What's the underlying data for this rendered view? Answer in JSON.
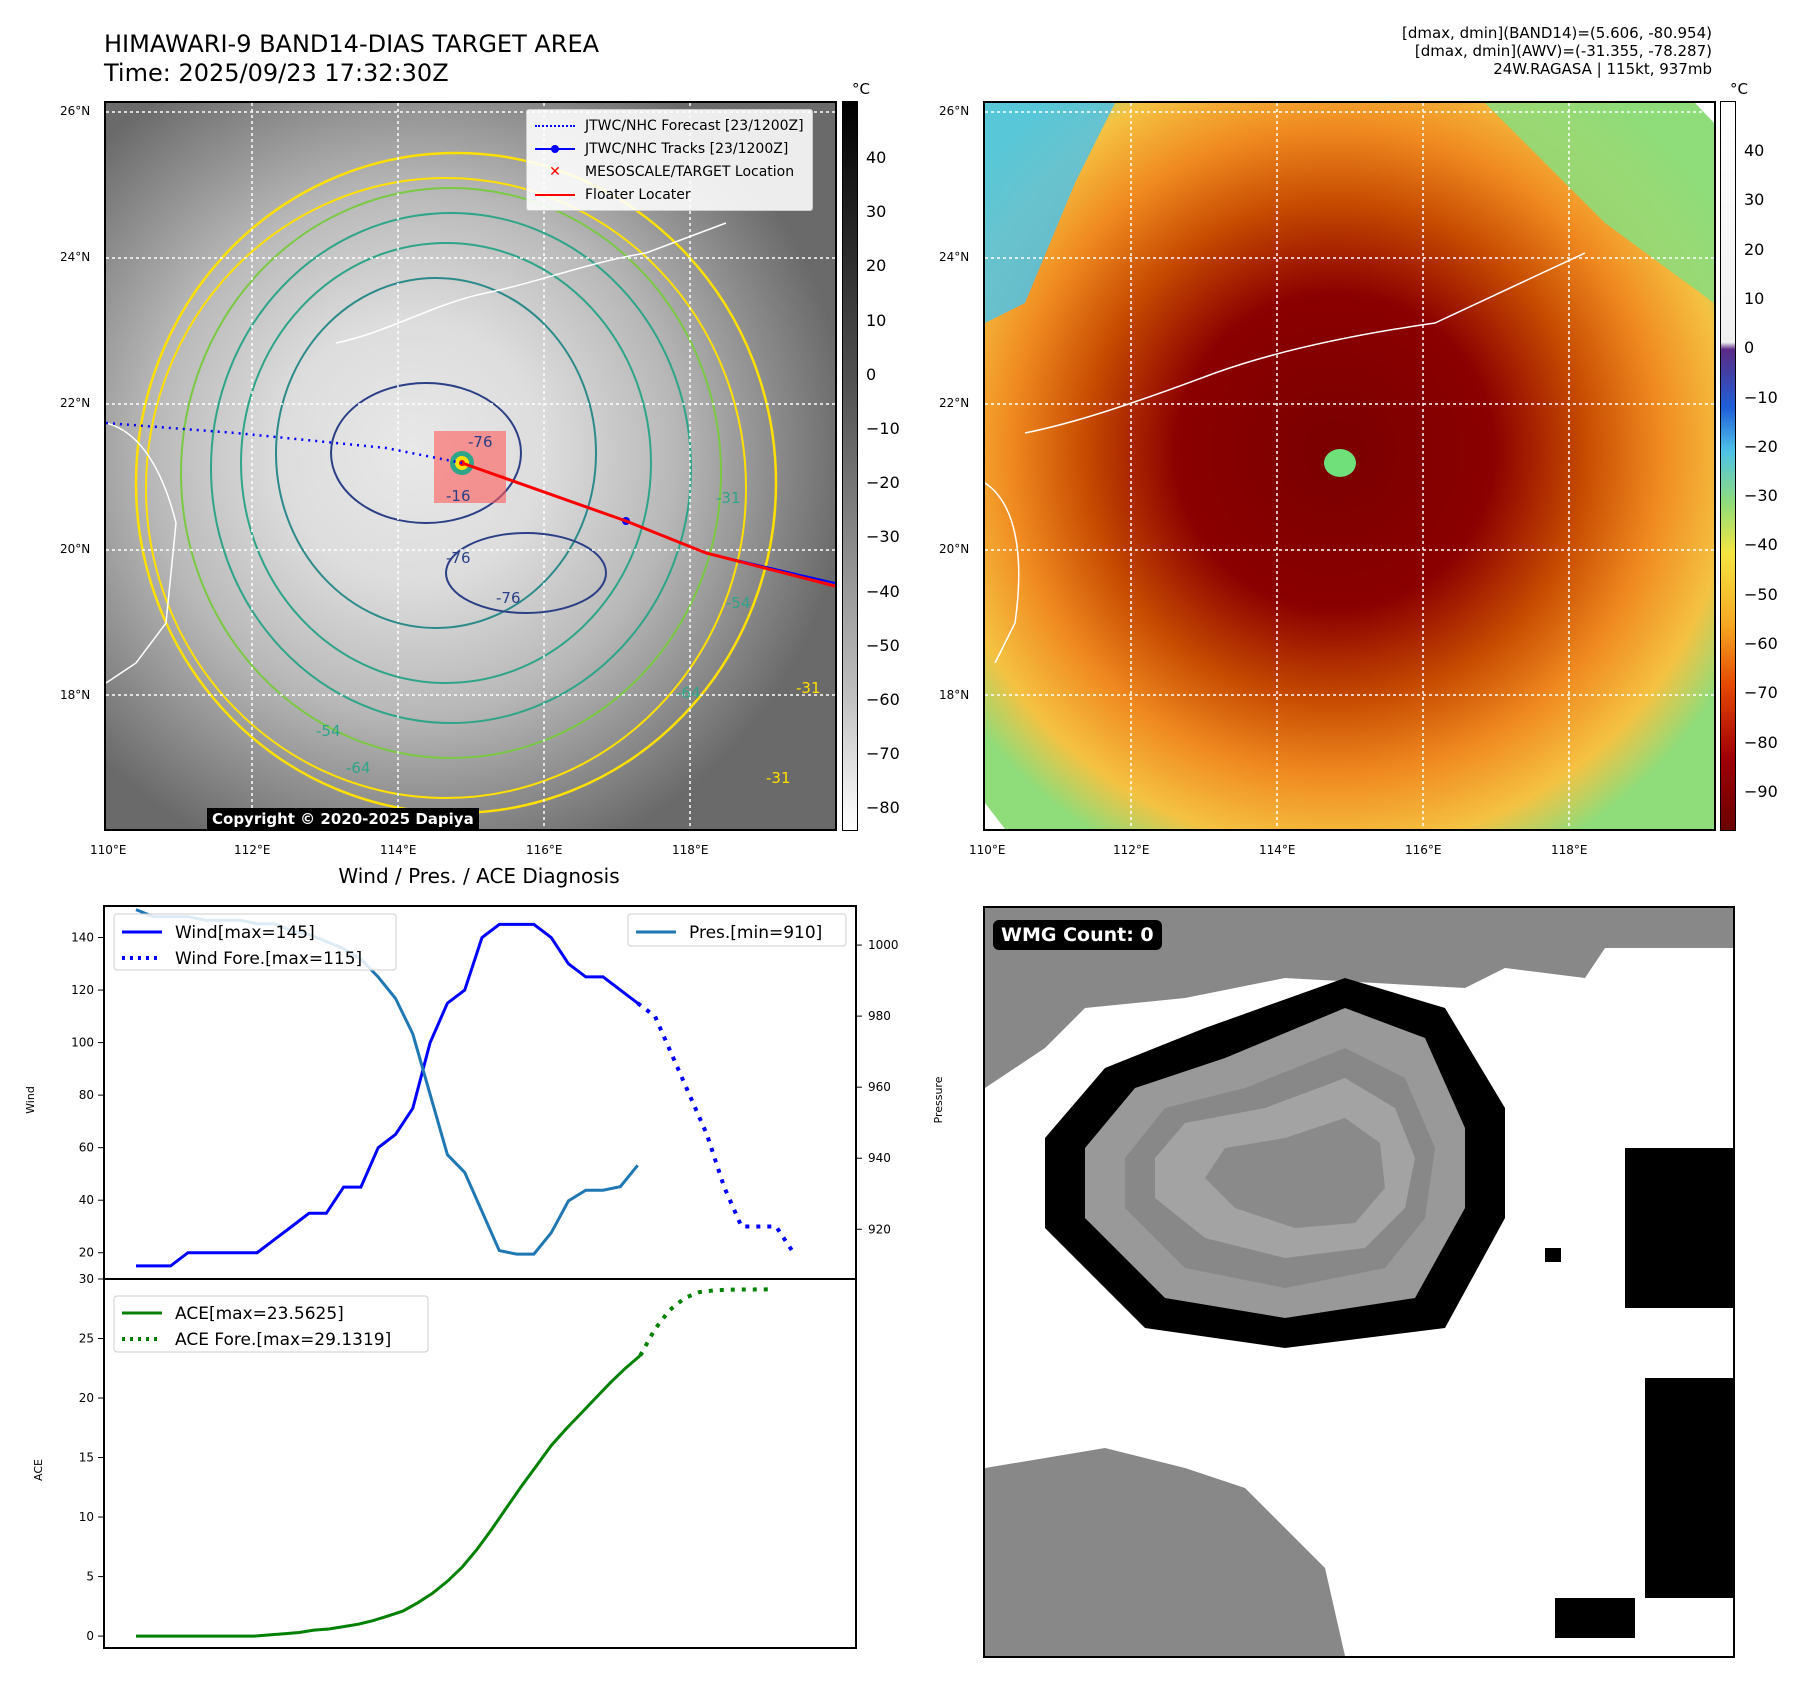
{
  "header": {
    "title_line1": "HIMAWARI-9 BAND14-DIAS TARGET AREA",
    "title_line2": "Time: 2025/09/23 17:32:30Z",
    "meta_line1": "[dmax, dmin](BAND14)=(5.606, -80.954)",
    "meta_line2": "[dmax, dmin](AWV)=(-31.355, -78.287)",
    "meta_line3": "24W.RAGASA | 115kt, 937mb"
  },
  "map": {
    "lat_labels": [
      "26°N",
      "24°N",
      "22°N",
      "20°N",
      "18°N"
    ],
    "lon_labels": [
      "110°E",
      "112°E",
      "114°E",
      "116°E",
      "118°E"
    ],
    "legend": [
      {
        "label": "JTWC/NHC Forecast [23/1200Z]",
        "color": "#0000ff",
        "style": "dotted"
      },
      {
        "label": "JTWC/NHC Tracks [23/1200Z]",
        "color": "#0000ff",
        "style": "marker-line"
      },
      {
        "label": "MESOSCALE/TARGET Location",
        "color": "#ff0000",
        "style": "x"
      },
      {
        "label": "Floater Locater",
        "color": "#ff0000",
        "style": "solid"
      }
    ],
    "copyright": "Copyright © 2020-2025 Dapiya",
    "contour_labels": [
      "-76",
      "-16",
      "-76",
      "-76",
      "-31",
      "-54",
      "-64",
      "-54",
      "-64",
      "-31",
      "-31"
    ],
    "colorbar1": {
      "unit": "°C",
      "ticks": [
        "40",
        "30",
        "20",
        "10",
        "0",
        "−10",
        "−20",
        "−30",
        "−40",
        "−50",
        "−60",
        "−70",
        "−80"
      ]
    },
    "colorbar2": {
      "unit": "°C",
      "ticks": [
        "40",
        "30",
        "20",
        "10",
        "0",
        "−10",
        "−20",
        "−30",
        "−40",
        "−50",
        "−60",
        "−70",
        "−80",
        "−90"
      ]
    }
  },
  "diagnosis": {
    "title": "Wind / Pres. / ACE Diagnosis",
    "wind_ylabel": "Wind",
    "pres_ylabel": "Pressure",
    "ace_ylabel": "ACE",
    "wind_ticks": [
      "140",
      "120",
      "100",
      "80",
      "60",
      "40",
      "20"
    ],
    "pres_ticks": [
      "1000",
      "980",
      "960",
      "940",
      "920"
    ],
    "ace_ticks": [
      "30",
      "25",
      "20",
      "15",
      "10",
      "5",
      "0"
    ],
    "legend_wind": "Wind[max=145]",
    "legend_wind_fore": "Wind Fore.[max=115]",
    "legend_pres": "Pres.[min=910]",
    "legend_ace": "ACE[max=23.5625]",
    "legend_ace_fore": "ACE Fore.[max=29.1319]"
  },
  "wmg": {
    "label": "WMG Count: 0"
  },
  "colors": {
    "wind": "#0000ff",
    "pressure": "#1f77b4",
    "ace": "#008000"
  },
  "chart_data": [
    {
      "type": "line",
      "title": "Wind / Pres. / ACE Diagnosis",
      "ylabel": "Wind",
      "ylim": [
        10,
        152
      ],
      "series": [
        {
          "name": "Wind[max=145]",
          "style": "solid",
          "values": [
            15,
            15,
            15,
            20,
            20,
            20,
            20,
            20,
            25,
            30,
            35,
            35,
            45,
            45,
            60,
            65,
            75,
            100,
            115,
            120,
            140,
            145,
            145,
            145,
            140,
            130,
            125,
            125,
            120,
            115
          ]
        },
        {
          "name": "Wind Fore.[max=115]",
          "style": "dotted",
          "values": [
            115,
            110,
            95,
            80,
            65,
            45,
            30,
            30,
            30,
            20
          ]
        }
      ]
    },
    {
      "type": "line",
      "ylabel": "Pressure",
      "ylim": [
        906,
        1011
      ],
      "series": [
        {
          "name": "Pres.[min=910]",
          "style": "solid",
          "values": [
            1010,
            1008,
            1008,
            1008,
            1007,
            1007,
            1007,
            1006,
            1006,
            1004,
            1003,
            1001,
            999,
            996,
            991,
            985,
            975,
            958,
            941,
            936,
            925,
            914,
            913,
            913,
            919,
            928,
            931,
            931,
            932,
            938
          ]
        }
      ]
    },
    {
      "type": "line",
      "ylabel": "ACE",
      "ylim": [
        -1,
        30
      ],
      "series": [
        {
          "name": "ACE[max=23.5625]",
          "style": "solid",
          "values": [
            0,
            0,
            0,
            0,
            0,
            0,
            0,
            0,
            0,
            0.1,
            0.2,
            0.3,
            0.5,
            0.6,
            0.8,
            1.0,
            1.3,
            1.7,
            2.1,
            2.8,
            3.6,
            4.6,
            5.8,
            7.3,
            9.0,
            10.8,
            12.6,
            14.3,
            16.0,
            17.4,
            18.7,
            20.0,
            21.3,
            22.5,
            23.5625
          ]
        },
        {
          "name": "ACE Fore.[max=29.1319]",
          "style": "dotted",
          "values": [
            23.5625,
            25.8,
            27.4,
            28.4,
            28.9,
            29.05,
            29.1,
            29.12,
            29.13,
            29.1319
          ]
        }
      ]
    }
  ]
}
